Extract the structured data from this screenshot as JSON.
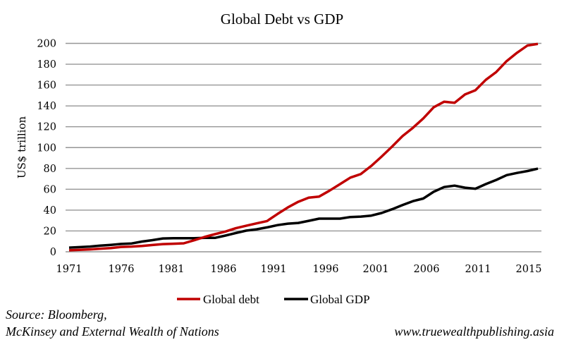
{
  "chart_data": {
    "type": "line",
    "title": "Global Debt vs GDP",
    "xlabel": "",
    "ylabel": "US$ trillion",
    "ylim": [
      0,
      200
    ],
    "yticks": [
      0,
      20,
      40,
      60,
      80,
      100,
      120,
      140,
      160,
      180,
      200
    ],
    "grid": true,
    "legend": "bottom",
    "x": [
      1971,
      1972,
      1973,
      1974,
      1975,
      1976,
      1977,
      1978,
      1979,
      1980,
      1981,
      1982,
      1983,
      1984,
      1985,
      1986,
      1987,
      1988,
      1989,
      1990,
      1991,
      1992,
      1993,
      1994,
      1995,
      1996,
      1997,
      1998,
      1999,
      2000,
      2001,
      2002,
      2003,
      2004,
      2005,
      2006,
      2007,
      2008,
      2009,
      2010,
      2011,
      2012,
      2013,
      2014,
      2015,
      2016
    ],
    "xtick_labels": [
      "1971",
      "1976",
      "1981",
      "1986",
      "1991",
      "1996",
      "2001",
      "2006",
      "2011",
      "2015"
    ],
    "series": [
      {
        "name": "Global debt",
        "color": "#C00000",
        "values": [
          1.4,
          1.8,
          2.3,
          3,
          3.6,
          4.7,
          5,
          5.6,
          6.5,
          7.4,
          7.7,
          8.1,
          11,
          14.2,
          16.9,
          19.4,
          22.6,
          25,
          27.3,
          29.5,
          36.3,
          42.6,
          48,
          52,
          53,
          58.7,
          64.9,
          71.2,
          74.6,
          82.4,
          91.4,
          100.9,
          111,
          119,
          128,
          138.7,
          144,
          143,
          151,
          155,
          165,
          172.5,
          183,
          191,
          198,
          199.5
        ]
      },
      {
        "name": "Global GDP",
        "color": "#000000",
        "values": [
          4,
          4.5,
          5,
          5.9,
          6.6,
          7.5,
          8,
          9.8,
          11.2,
          12.8,
          13,
          13,
          13,
          13.3,
          13.3,
          15.6,
          18,
          20.3,
          21.6,
          23.4,
          25.6,
          27,
          27.7,
          29.7,
          31.8,
          31.8,
          31.8,
          33.4,
          33.8,
          34.7,
          37.2,
          40.8,
          44.8,
          48.6,
          51.1,
          57.6,
          62.1,
          63.5,
          61.5,
          60.5,
          65,
          69,
          73.6,
          75.7,
          77.5,
          79.8
        ]
      }
    ]
  },
  "footer": {
    "source_line1": "Source: Bloomberg,",
    "source_line2": "McKinsey and External Wealth of Nations",
    "website": "www.truewealthpublishing.asia"
  }
}
